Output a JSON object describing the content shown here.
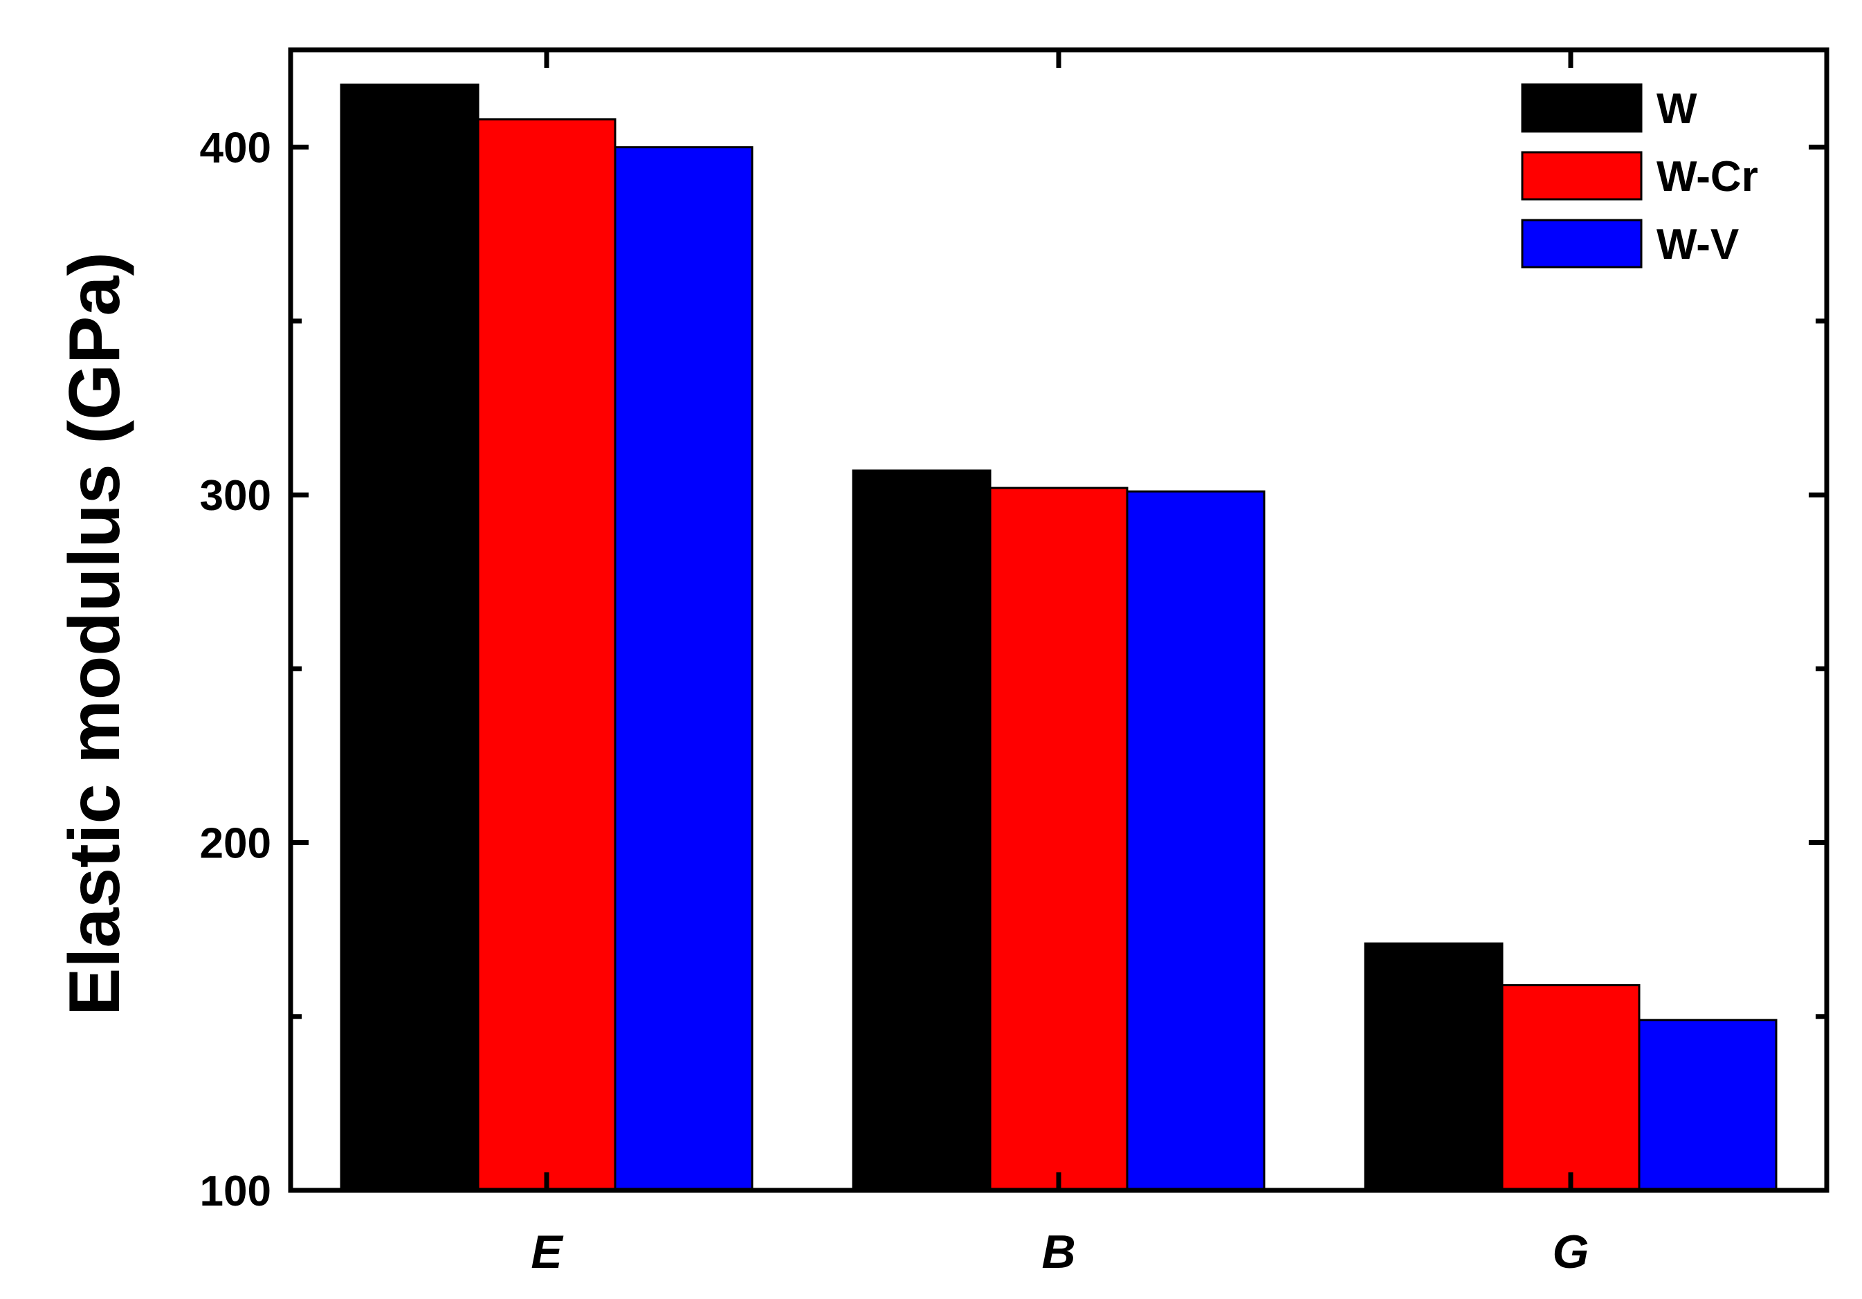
{
  "chart_data": {
    "type": "bar",
    "categories": [
      "E",
      "B",
      "G"
    ],
    "series": [
      {
        "name": "W",
        "color": "#000000",
        "values": [
          418,
          307,
          171
        ]
      },
      {
        "name": "W-Cr",
        "color": "#ff0000",
        "values": [
          408,
          302,
          159
        ]
      },
      {
        "name": "W-V",
        "color": "#0000ff",
        "values": [
          400,
          301,
          149
        ]
      }
    ],
    "ylabel": "Elastic modulus (GPa)",
    "xlabel": "",
    "ylim": [
      100,
      428
    ],
    "yticks": [
      100,
      200,
      300,
      400
    ],
    "yticklabels": [
      "100",
      "200",
      "300",
      "400"
    ],
    "minor_ytick_step": 50,
    "legend_position": "top-right",
    "grid": false
  }
}
